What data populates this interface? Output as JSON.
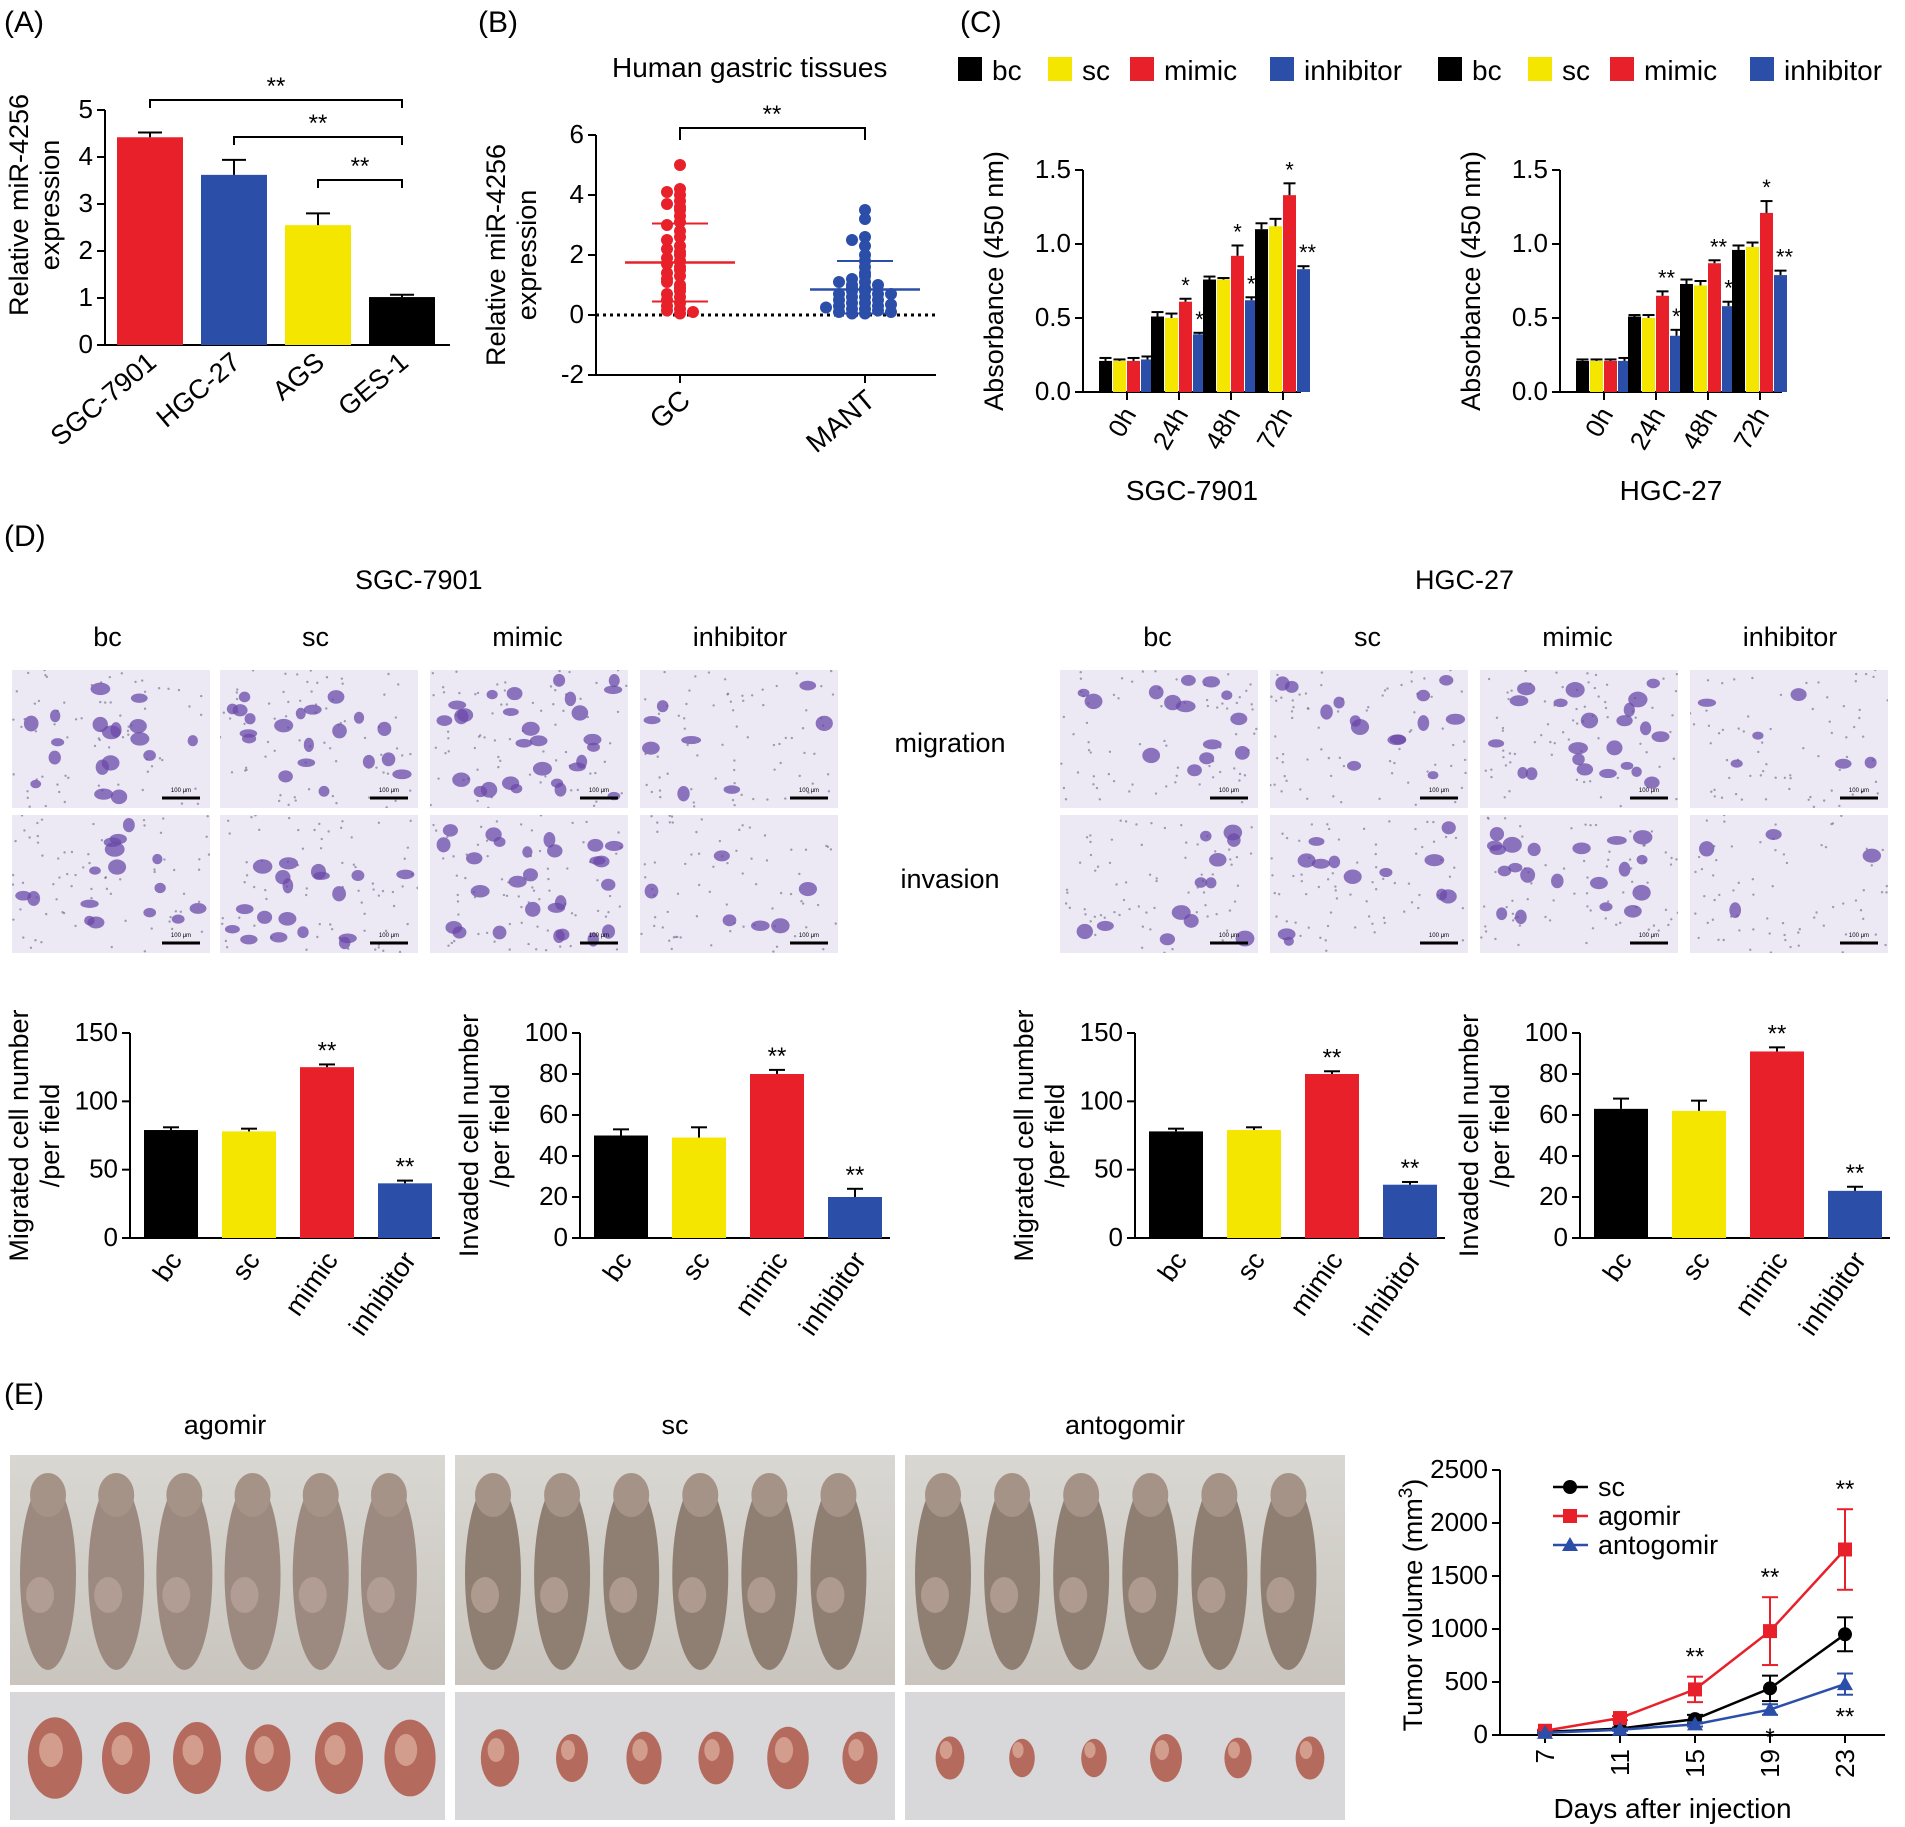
{
  "panel_labels": [
    "(A)",
    "(B)",
    "(C)",
    "(D)",
    "(E)"
  ],
  "colors": {
    "bc": "#000000",
    "sc": "#f5e600",
    "mimic": "#e8202a",
    "inhibitor": "#2b4fa8",
    "gc_dot": "#e8202a",
    "mant_dot": "#2b4fa8"
  },
  "panelB": {
    "header": "Human gastric tissues"
  },
  "panelC": {
    "legend": [
      "bc",
      "sc",
      "mimic",
      "inhibitor",
      "bc",
      "sc",
      "mimic",
      "inhibitor"
    ]
  },
  "panelD": {
    "cell_lines": [
      "SGC-7901",
      "HGC-27"
    ],
    "group_labels": [
      "bc",
      "sc",
      "mimic",
      "inhibitor",
      "bc",
      "sc",
      "mimic",
      "inhibitor"
    ],
    "row_labels": [
      "migration",
      "invasion"
    ],
    "scale_bar_text": "100 μm"
  },
  "panelE": {
    "group_labels": [
      "agomir",
      "sc",
      "antogomir"
    ]
  },
  "chart_data": [
    {
      "id": "A",
      "type": "bar",
      "categories": [
        "SGC-7901",
        "HGC-27",
        "AGS",
        "GES-1"
      ],
      "values": [
        4.42,
        3.62,
        2.55,
        1.02
      ],
      "errors": [
        0.1,
        0.32,
        0.25,
        0.05
      ],
      "bar_colors": [
        "#e8202a",
        "#2b4fa8",
        "#f5e600",
        "#000000"
      ],
      "ylabel": [
        "Relative miR-4256",
        "expression"
      ],
      "ylim": [
        0,
        5
      ],
      "yticks": [
        0,
        1,
        2,
        3,
        4,
        5
      ],
      "sig": [
        [
          "SGC-7901",
          "GES-1",
          "**"
        ],
        [
          "HGC-27",
          "GES-1",
          "**"
        ],
        [
          "AGS",
          "GES-1",
          "**"
        ]
      ]
    },
    {
      "id": "B",
      "type": "scatter",
      "categories": [
        "GC",
        "MANT"
      ],
      "ylabel": [
        "Relative miR-4256",
        "expression"
      ],
      "ylim": [
        -2,
        6
      ],
      "yticks": [
        -2,
        0,
        2,
        4,
        6
      ],
      "GC": [
        5.0,
        4.2,
        4.1,
        4.0,
        3.8,
        3.7,
        3.6,
        3.5,
        3.3,
        3.1,
        3.0,
        2.8,
        2.6,
        2.5,
        2.3,
        2.1,
        2.0,
        1.9,
        1.8,
        1.6,
        1.5,
        1.4,
        1.3,
        1.2,
        1.0,
        0.9,
        0.8,
        0.7,
        0.6,
        0.5,
        0.4,
        0.3,
        0.2,
        0.15,
        0.1,
        0.05,
        2.2,
        1.7,
        1.1
      ],
      "MANT": [
        3.5,
        3.2,
        2.6,
        2.5,
        2.3,
        2.0,
        1.8,
        1.6,
        1.4,
        1.3,
        1.2,
        1.1,
        1.0,
        1.0,
        0.9,
        0.9,
        0.8,
        0.8,
        0.7,
        0.7,
        0.6,
        0.6,
        0.5,
        0.5,
        0.4,
        0.4,
        0.3,
        0.3,
        0.2,
        0.2,
        0.15,
        0.1,
        0.1,
        0.05,
        0.05,
        1.1,
        0.7,
        0.35,
        0.25
      ],
      "GC_mean": 1.75,
      "GC_sd": [
        0.45,
        3.05
      ],
      "MANT_mean": 0.85,
      "MANT_sd": [
        0.05,
        1.8
      ],
      "sig": "**"
    },
    {
      "id": "C1",
      "type": "bar",
      "title": "SGC-7901",
      "categories": [
        "0h",
        "24h",
        "48h",
        "72h"
      ],
      "series": [
        {
          "name": "bc",
          "values": [
            0.21,
            0.51,
            0.76,
            1.1
          ],
          "errors": [
            0.02,
            0.03,
            0.02,
            0.04
          ]
        },
        {
          "name": "sc",
          "values": [
            0.21,
            0.5,
            0.76,
            1.12
          ],
          "errors": [
            0.01,
            0.03,
            0.01,
            0.05
          ]
        },
        {
          "name": "mimic",
          "values": [
            0.21,
            0.61,
            0.92,
            1.33
          ],
          "errors": [
            0.02,
            0.02,
            0.07,
            0.08
          ]
        },
        {
          "name": "inhibitor",
          "values": [
            0.22,
            0.39,
            0.62,
            0.83
          ],
          "errors": [
            0.02,
            0.01,
            0.02,
            0.02
          ]
        }
      ],
      "sig_labels": [
        [
          "",
          "",
          "",
          ""
        ],
        [
          "",
          "",
          "*",
          "*"
        ],
        [
          "",
          "",
          "*",
          "**"
        ],
        [
          "",
          "",
          "*",
          "**"
        ]
      ],
      "ylabel": "Absorbance (450 nm)",
      "ylim": [
        0,
        1.5
      ],
      "yticks": [
        0.0,
        0.5,
        1.0,
        1.5
      ]
    },
    {
      "id": "C2",
      "type": "bar",
      "title": "HGC-27",
      "categories": [
        "0h",
        "24h",
        "48h",
        "72h"
      ],
      "series": [
        {
          "name": "bc",
          "values": [
            0.21,
            0.51,
            0.73,
            0.96
          ],
          "errors": [
            0.01,
            0.01,
            0.03,
            0.03
          ]
        },
        {
          "name": "sc",
          "values": [
            0.21,
            0.5,
            0.72,
            0.98
          ],
          "errors": [
            0.01,
            0.02,
            0.03,
            0.03
          ]
        },
        {
          "name": "mimic",
          "values": [
            0.21,
            0.65,
            0.87,
            1.21
          ],
          "errors": [
            0.01,
            0.03,
            0.02,
            0.08
          ]
        },
        {
          "name": "inhibitor",
          "values": [
            0.21,
            0.38,
            0.58,
            0.79
          ],
          "errors": [
            0.02,
            0.04,
            0.03,
            0.03
          ]
        }
      ],
      "sig_labels": [
        [
          "",
          "",
          "",
          ""
        ],
        [
          "",
          "",
          "**",
          "**"
        ],
        [
          "",
          "",
          "**",
          "*"
        ],
        [
          "",
          "",
          "*",
          "**"
        ]
      ],
      "ylabel": "Absorbance (450 nm)",
      "ylim": [
        0,
        1.5
      ],
      "yticks": [
        0.0,
        0.5,
        1.0,
        1.5
      ]
    },
    {
      "id": "D1",
      "type": "bar",
      "categories": [
        "bc",
        "sc",
        "mimic",
        "inhibitor"
      ],
      "values": [
        79,
        78,
        125,
        40
      ],
      "errors": [
        2,
        2,
        2,
        2
      ],
      "sig_labels": [
        "",
        "",
        "**",
        "**"
      ],
      "ylabel": [
        "Migrated cell number",
        "/per field"
      ],
      "ylim": [
        0,
        150
      ],
      "yticks": [
        0,
        50,
        100,
        150
      ]
    },
    {
      "id": "D2",
      "type": "bar",
      "categories": [
        "bc",
        "sc",
        "mimic",
        "inhibitor"
      ],
      "values": [
        50,
        49,
        80,
        20
      ],
      "errors": [
        3,
        5,
        2,
        4
      ],
      "sig_labels": [
        "",
        "",
        "**",
        "**"
      ],
      "ylabel": [
        "Invaded cell number",
        "/per field"
      ],
      "ylim": [
        0,
        100
      ],
      "yticks": [
        0,
        20,
        40,
        60,
        80,
        100
      ]
    },
    {
      "id": "D3",
      "type": "bar",
      "categories": [
        "bc",
        "sc",
        "mimic",
        "inhibitor"
      ],
      "values": [
        78,
        79,
        120,
        39
      ],
      "errors": [
        2,
        2,
        2,
        2
      ],
      "sig_labels": [
        "",
        "",
        "**",
        "**"
      ],
      "ylabel": [
        "Migrated cell number",
        "/per field"
      ],
      "ylim": [
        0,
        150
      ],
      "yticks": [
        0,
        50,
        100,
        150
      ]
    },
    {
      "id": "D4",
      "type": "bar",
      "categories": [
        "bc",
        "sc",
        "mimic",
        "inhibitor"
      ],
      "values": [
        63,
        62,
        91,
        23
      ],
      "errors": [
        5,
        5,
        2,
        2
      ],
      "sig_labels": [
        "",
        "",
        "**",
        "**"
      ],
      "ylabel": [
        "Invaded cell number",
        "/per field"
      ],
      "ylim": [
        0,
        100
      ],
      "yticks": [
        0,
        20,
        40,
        60,
        80,
        100
      ]
    },
    {
      "id": "E",
      "type": "line",
      "x": [
        7,
        11,
        15,
        19,
        23
      ],
      "series": [
        {
          "name": "sc",
          "values": [
            30,
            60,
            150,
            440,
            950
          ],
          "errors": [
            10,
            10,
            40,
            120,
            160
          ]
        },
        {
          "name": "agomir",
          "values": [
            40,
            160,
            430,
            980,
            1750
          ],
          "errors": [
            10,
            20,
            120,
            320,
            380
          ]
        },
        {
          "name": "antogomir",
          "values": [
            20,
            50,
            100,
            240,
            480
          ],
          "errors": [
            5,
            10,
            20,
            50,
            100
          ]
        }
      ],
      "sig_above": [
        "",
        "",
        "**",
        "**",
        "**"
      ],
      "sig_below": [
        "",
        "",
        "",
        "*",
        "**"
      ],
      "xlabel": "Days after injection",
      "ylabel": "Tumor volume (mm",
      "ylabel_sup": "3",
      "ylabel_close": ")",
      "ylim": [
        0,
        2500
      ],
      "yticks": [
        0,
        500,
        1000,
        1500,
        2000,
        2500
      ]
    }
  ]
}
